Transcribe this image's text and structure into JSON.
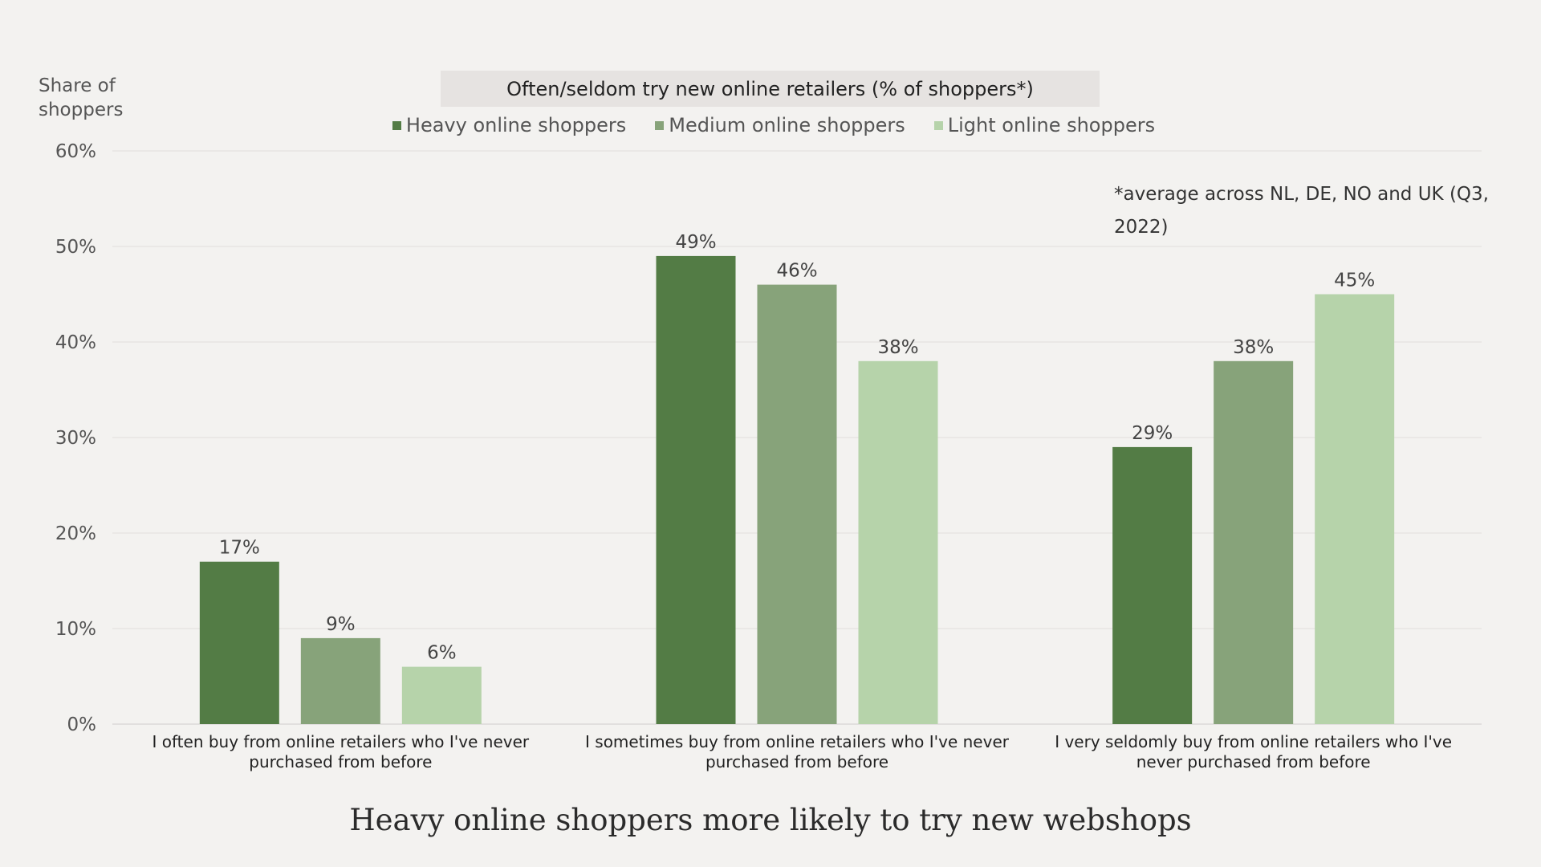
{
  "chart_data": {
    "type": "bar",
    "legend_title": "Often/seldom try new online retailers (% of shoppers*)",
    "ylabel": "Share of shoppers",
    "ylim": [
      0,
      60
    ],
    "yticks": [
      0,
      10,
      20,
      30,
      40,
      50,
      60
    ],
    "ytick_labels": [
      "0%",
      "10%",
      "20%",
      "30%",
      "40%",
      "50%",
      "60%"
    ],
    "categories": [
      "I often buy from online retailers who I've never purchased from before",
      "I sometimes buy from online retailers who I've never purchased from before",
      "I very seldomly buy from online retailers who I've never purchased from before"
    ],
    "series": [
      {
        "name": "Heavy online shoppers",
        "color": "#537c45",
        "values": [
          17,
          49,
          29
        ],
        "labels": [
          "17%",
          "49%",
          "29%"
        ]
      },
      {
        "name": "Medium online shoppers",
        "color": "#87a37a",
        "values": [
          9,
          46,
          38
        ],
        "labels": [
          "9%",
          "46%",
          "38%"
        ]
      },
      {
        "name": "Light online shoppers",
        "color": "#b6d3aa",
        "values": [
          6,
          38,
          45
        ],
        "labels": [
          "6%",
          "38%",
          "45%"
        ]
      }
    ],
    "note": "*average across NL, DE, NO and UK (Q3, 2022)",
    "legend_position": "top-center",
    "grid": true,
    "footer_title": "Heavy online shoppers more likely to try new webshops"
  }
}
